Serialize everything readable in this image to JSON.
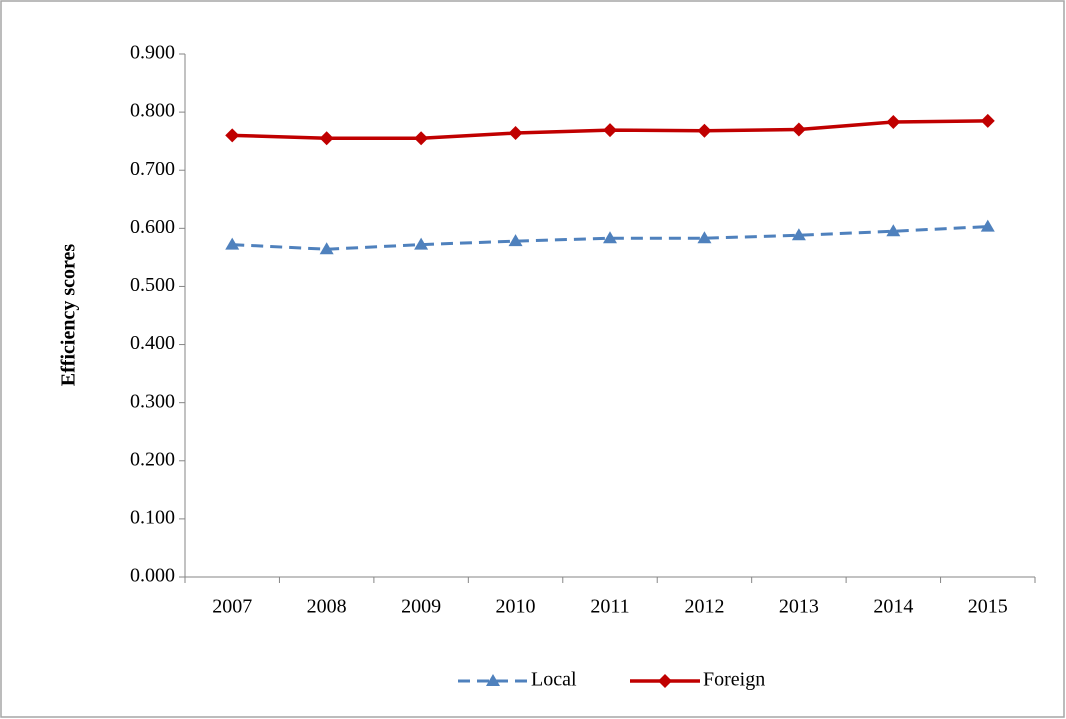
{
  "chart_data": {
    "type": "line",
    "y_label": "Efficiency scores",
    "categories": [
      "2007",
      "2008",
      "2009",
      "2010",
      "2011",
      "2012",
      "2013",
      "2014",
      "2015"
    ],
    "series": [
      {
        "name": "Local",
        "color": "#4f81bd",
        "dash": true,
        "marker": "triangle",
        "values": [
          0.572,
          0.564,
          0.572,
          0.578,
          0.583,
          0.583,
          0.588,
          0.595,
          0.603
        ]
      },
      {
        "name": "Foreign",
        "color": "#c00000",
        "dash": false,
        "marker": "diamond",
        "values": [
          0.76,
          0.755,
          0.755,
          0.764,
          0.769,
          0.768,
          0.77,
          0.783,
          0.785
        ]
      }
    ],
    "ylim": [
      0,
      0.9
    ],
    "yticks": [
      {
        "value": 0,
        "label": "0.000"
      },
      {
        "value": 0.1,
        "label": "0.100"
      },
      {
        "value": 0.2,
        "label": "0.200"
      },
      {
        "value": 0.3,
        "label": "0.300"
      },
      {
        "value": 0.4,
        "label": "0.400"
      },
      {
        "value": 0.5,
        "label": "0.500"
      },
      {
        "value": 0.6,
        "label": "0.600"
      },
      {
        "value": 0.7,
        "label": "0.700"
      },
      {
        "value": 0.8,
        "label": "0.800"
      },
      {
        "value": 0.9,
        "label": "0.900"
      }
    ],
    "grid": false,
    "legend": "bottom"
  }
}
